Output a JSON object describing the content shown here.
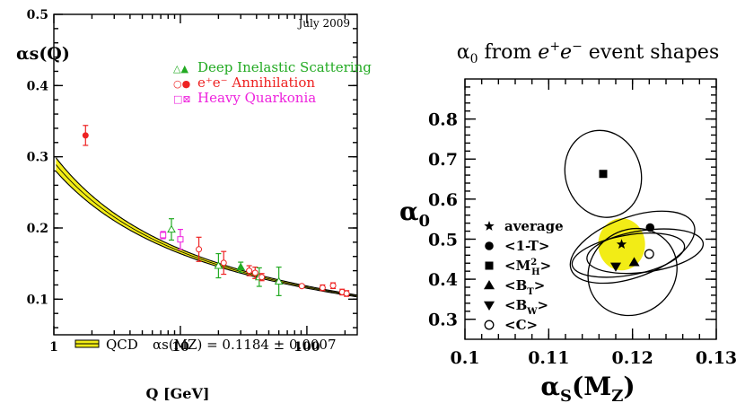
{
  "chart_data": [
    {
      "type": "line",
      "date_label": "July 2009",
      "ylabel": "αs(Q)",
      "xlabel": "Q [GeV]",
      "xscale": "log",
      "xlim": [
        1,
        250
      ],
      "ylim": [
        0.05,
        0.5
      ],
      "x_ticks": [
        "1",
        "10",
        "100"
      ],
      "y_ticks": [
        "0.1",
        "0.2",
        "0.3",
        "0.4",
        "0.5"
      ],
      "legend": [
        {
          "symbols": "△▲",
          "label": "Deep Inelastic Scattering",
          "color": "#22aa22"
        },
        {
          "symbols": "○●",
          "label": "e⁺e⁻ Annihilation",
          "color": "#ee2222"
        },
        {
          "symbols": "□⊠",
          "label": "Heavy Quarkonia",
          "color": "#ee22dd"
        }
      ],
      "band_label": "QCD",
      "band_formula": "αs(MZ) = 0.1184 ± 0.0007",
      "alpha_mz": 0.1184,
      "points": [
        {
          "group": "ee",
          "q": 1.78,
          "a": 0.33,
          "err": 0.014
        },
        {
          "group": "hq",
          "q": 7.3,
          "a": 0.19,
          "err": 0.005
        },
        {
          "group": "dis",
          "q": 8.5,
          "a": 0.198,
          "err": 0.015
        },
        {
          "group": "hq",
          "q": 10.0,
          "a": 0.184,
          "err": 0.014
        },
        {
          "group": "ee",
          "q": 14.0,
          "a": 0.17,
          "err": 0.017
        },
        {
          "group": "ee",
          "q": 22.0,
          "a": 0.151,
          "err": 0.016
        },
        {
          "group": "dis",
          "q": 20.0,
          "a": 0.147,
          "err": 0.017
        },
        {
          "group": "dis",
          "q": 30.0,
          "a": 0.145,
          "err": 0.007
        },
        {
          "group": "ee",
          "q": 35.0,
          "a": 0.14,
          "err": 0.007
        },
        {
          "group": "ee",
          "q": 39.0,
          "a": 0.137,
          "err": 0.008
        },
        {
          "group": "dis",
          "q": 42.0,
          "a": 0.131,
          "err": 0.013
        },
        {
          "group": "ee",
          "q": 44.0,
          "a": 0.131,
          "err": 0.005
        },
        {
          "group": "dis",
          "q": 60.0,
          "a": 0.125,
          "err": 0.02
        },
        {
          "group": "ee",
          "q": 91.2,
          "a": 0.1184,
          "err": 0.002
        },
        {
          "group": "ee",
          "q": 133.0,
          "a": 0.116,
          "err": 0.004
        },
        {
          "group": "ee",
          "q": 161.0,
          "a": 0.119,
          "err": 0.004
        },
        {
          "group": "ee",
          "q": 190.0,
          "a": 0.11,
          "err": 0.004
        },
        {
          "group": "ee",
          "q": 206.0,
          "a": 0.108,
          "err": 0.004
        }
      ]
    },
    {
      "type": "scatter",
      "title_prefix": "α",
      "title_sub": "0",
      "title_rest": " from ",
      "title_e": "e",
      "title_plus": "+",
      "title_minus": "−",
      "title_end": " event shapes",
      "ylabel_main": "α",
      "ylabel_sub": "0",
      "xlabel_main": "α",
      "xlabel_sub": "S",
      "xlabel_paren": "(M",
      "xlabel_z": "Z",
      "xlabel_close": ")",
      "xlim": [
        0.1,
        0.13
      ],
      "ylim": [
        0.25,
        0.9
      ],
      "x_ticks": [
        "0.1",
        "0.11",
        "0.12",
        "0.13"
      ],
      "y_ticks": [
        "0.3",
        "0.4",
        "0.5",
        "0.6",
        "0.7",
        "0.8"
      ],
      "average": {
        "x": 0.1187,
        "y": 0.487,
        "rx": 0.0028,
        "ry": 0.065,
        "color": "#f2ec16"
      },
      "ellipses": [
        {
          "cx": 0.1165,
          "cy": 0.663,
          "rx": 0.0045,
          "ry": 0.11,
          "rot": -18
        },
        {
          "cx": 0.12,
          "cy": 0.48,
          "rx": 0.0078,
          "ry": 0.075,
          "rot": -20
        },
        {
          "cx": 0.1195,
          "cy": 0.46,
          "rx": 0.0068,
          "ry": 0.05,
          "rot": -10
        },
        {
          "cx": 0.12,
          "cy": 0.418,
          "rx": 0.005,
          "ry": 0.115,
          "rot": 52
        },
        {
          "cx": 0.1215,
          "cy": 0.47,
          "rx": 0.007,
          "ry": 0.052,
          "rot": -8
        }
      ],
      "points": [
        {
          "marker": "star",
          "x": 0.1187,
          "y": 0.487
        },
        {
          "marker": "circle",
          "x": 0.1221,
          "y": 0.529
        },
        {
          "marker": "square",
          "x": 0.1165,
          "y": 0.663
        },
        {
          "marker": "triangle",
          "x": 0.1202,
          "y": 0.442
        },
        {
          "marker": "triangle-down",
          "x": 0.118,
          "y": 0.432
        },
        {
          "marker": "circle-open",
          "x": 0.122,
          "y": 0.463
        }
      ],
      "legend": [
        {
          "marker": "star",
          "label": "average"
        },
        {
          "marker": "circle",
          "label": "<1-T>"
        },
        {
          "marker": "square",
          "label": "<M",
          "sub": "H",
          "sup": "2",
          "end": ">"
        },
        {
          "marker": "triangle",
          "label": "<B",
          "sub": "T",
          "end": ">"
        },
        {
          "marker": "triangle-down",
          "label": "<B",
          "sub": "W",
          "end": ">"
        },
        {
          "marker": "circle-open",
          "label": "<C>"
        }
      ]
    }
  ]
}
